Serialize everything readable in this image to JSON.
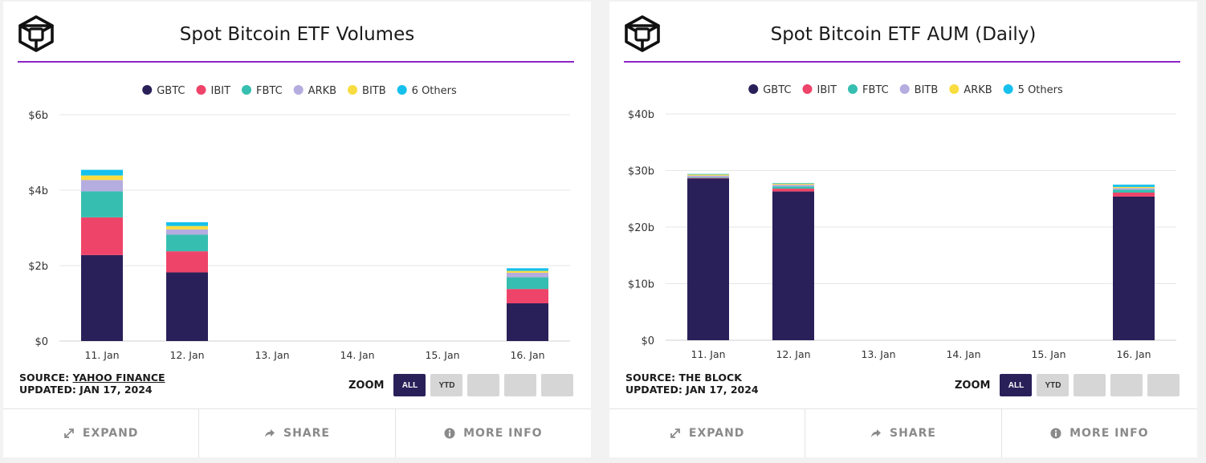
{
  "colors": {
    "accent_rule": "#8e24c9",
    "grid": "#e6e6e6",
    "zoom_active": "#2a2059",
    "zoom_inactive": "#d6d6d6",
    "footer_text": "#8a8a8a"
  },
  "panels": [
    {
      "source_label": "SOURCE:",
      "source_name": "YAHOO FINANCE",
      "updated": "UPDATED: JAN 17, 2024",
      "zoom_label": "ZOOM",
      "zoom_buttons": [
        "ALL",
        "YTD",
        "",
        "",
        ""
      ],
      "footer": {
        "expand": "EXPAND",
        "share": "SHARE",
        "more_info": "MORE INFO"
      }
    },
    {
      "source_label": "SOURCE:",
      "source_name": "THE BLOCK",
      "updated": "UPDATED: JAN 17, 2024",
      "zoom_label": "ZOOM",
      "zoom_buttons": [
        "ALL",
        "YTD",
        "",
        "",
        ""
      ],
      "footer": {
        "expand": "EXPAND",
        "share": "SHARE",
        "more_info": "MORE INFO"
      }
    }
  ],
  "chart_data": [
    {
      "type": "bar",
      "stacked": true,
      "title": "Spot Bitcoin ETF Volumes",
      "categories": [
        "11. Jan",
        "12. Jan",
        "13. Jan",
        "14. Jan",
        "15. Jan",
        "16. Jan"
      ],
      "ylim": [
        0,
        6
      ],
      "yticks": [
        0,
        2,
        4,
        6
      ],
      "ytick_labels": [
        "$0",
        "$2b",
        "$4b",
        "$6b"
      ],
      "xlabel": "",
      "ylabel": "",
      "grid": true,
      "legend_position": "top-center",
      "series": [
        {
          "name": "GBTC",
          "color": "#2a2059",
          "values": [
            2.28,
            1.82,
            0,
            0,
            0,
            1.0
          ]
        },
        {
          "name": "IBIT",
          "color": "#ef4469",
          "values": [
            1.0,
            0.56,
            0,
            0,
            0,
            0.38
          ]
        },
        {
          "name": "FBTC",
          "color": "#36bfb1",
          "values": [
            0.69,
            0.44,
            0,
            0,
            0,
            0.31
          ]
        },
        {
          "name": "ARKB",
          "color": "#b5acdf",
          "values": [
            0.3,
            0.14,
            0,
            0,
            0,
            0.12
          ]
        },
        {
          "name": "BITB",
          "color": "#f9dd40",
          "values": [
            0.12,
            0.09,
            0,
            0,
            0,
            0.05
          ]
        },
        {
          "name": "6 Others",
          "color": "#16c0ec",
          "values": [
            0.15,
            0.1,
            0,
            0,
            0,
            0.07
          ]
        }
      ]
    },
    {
      "type": "bar",
      "stacked": true,
      "title": "Spot Bitcoin ETF AUM (Daily)",
      "categories": [
        "11. Jan",
        "12. Jan",
        "13. Jan",
        "14. Jan",
        "15. Jan",
        "16. Jan"
      ],
      "ylim": [
        0,
        40
      ],
      "yticks": [
        0,
        10,
        20,
        30,
        40
      ],
      "ytick_labels": [
        "$0",
        "$10b",
        "$20b",
        "$30b",
        "$40b"
      ],
      "xlabel": "",
      "ylabel": "",
      "grid": true,
      "legend_position": "top-center",
      "series": [
        {
          "name": "GBTC",
          "color": "#2a2059",
          "values": [
            28.6,
            26.3,
            0,
            0,
            0,
            25.4
          ]
        },
        {
          "name": "IBIT",
          "color": "#ef4469",
          "values": [
            0.1,
            0.5,
            0,
            0,
            0,
            0.7
          ]
        },
        {
          "name": "FBTC",
          "color": "#36bfb1",
          "values": [
            0.1,
            0.4,
            0,
            0,
            0,
            0.5
          ]
        },
        {
          "name": "BITB",
          "color": "#b5acdf",
          "values": [
            0.3,
            0.3,
            0,
            0,
            0,
            0.3
          ]
        },
        {
          "name": "ARKB",
          "color": "#f9dd40",
          "values": [
            0.2,
            0.2,
            0,
            0,
            0,
            0.2
          ]
        },
        {
          "name": "5 Others",
          "color": "#16c0ec",
          "values": [
            0.1,
            0.1,
            0,
            0,
            0,
            0.4
          ]
        }
      ]
    }
  ]
}
